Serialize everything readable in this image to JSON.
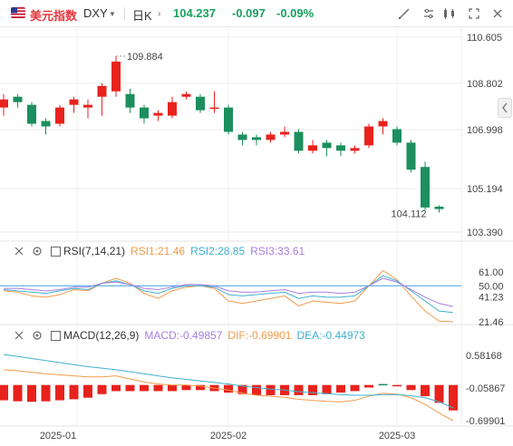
{
  "header": {
    "symbol_name": "美元指数",
    "symbol_code": "DXY",
    "period": "日K",
    "last_price": "104.237",
    "change": "-0.097",
    "change_pct": "-0.09%"
  },
  "tools": [
    "line-tool-icon",
    "indicator-settings-icon",
    "drawing-tool-icon",
    "chart-type-icon",
    "fullscreen-icon",
    "close-icon"
  ],
  "main_chart": {
    "price_ticks": [
      "110.605",
      "108.802",
      "106.998",
      "105.194",
      "103.390"
    ],
    "high_label": "109.884",
    "low_label": "104.112"
  },
  "rsi": {
    "title": "RSI(7,14,21)",
    "rsi1_label": "RSI1:21.46",
    "rsi2_label": "RSI2:28.85",
    "rsi3_label": "RSI3:33.61",
    "ticks": [
      "61.00",
      "50.00",
      "41.23",
      "21.46"
    ]
  },
  "macd": {
    "title": "MACD(12,26,9)",
    "macd_label": "MACD:-0.49857",
    "dif_label": "DIF:-0.69901",
    "dea_label": "DEA:-0.44973",
    "ticks": [
      "0.58168",
      "-0.05867",
      "-0.69901"
    ]
  },
  "x_axis": [
    "2025-01",
    "2025-02",
    "2025-03"
  ],
  "colors": {
    "up": "#e8221d",
    "down": "#1b8f5e",
    "rsi1": "#f39b4b",
    "rsi2": "#3fb1cf",
    "rsi3": "#a67fe0",
    "dif": "#f39b4b",
    "dea": "#3fb1cf",
    "accent": "#e4393c"
  },
  "chart_data": [
    {
      "type": "candlestick",
      "title": "",
      "ylim": [
        103.39,
        110.605
      ],
      "candles": [
        {
          "o": 108.0,
          "c": 108.3,
          "h": 108.5,
          "l": 107.7
        },
        {
          "o": 108.4,
          "c": 108.2,
          "h": 108.5,
          "l": 108.0
        },
        {
          "o": 108.1,
          "c": 107.4,
          "h": 108.2,
          "l": 107.3
        },
        {
          "o": 107.5,
          "c": 107.3,
          "h": 107.6,
          "l": 107.0
        },
        {
          "o": 107.4,
          "c": 108.0,
          "h": 108.1,
          "l": 107.3
        },
        {
          "o": 108.1,
          "c": 108.3,
          "h": 108.4,
          "l": 107.8
        },
        {
          "o": 108.0,
          "c": 108.1,
          "h": 108.3,
          "l": 107.6
        },
        {
          "o": 108.4,
          "c": 108.8,
          "h": 108.9,
          "l": 107.7
        },
        {
          "o": 108.6,
          "c": 109.7,
          "h": 109.9,
          "l": 108.4
        },
        {
          "o": 108.5,
          "c": 108.0,
          "h": 108.7,
          "l": 107.8
        },
        {
          "o": 108.0,
          "c": 107.6,
          "h": 108.1,
          "l": 107.4
        },
        {
          "o": 107.7,
          "c": 107.8,
          "h": 107.9,
          "l": 107.5
        },
        {
          "o": 107.7,
          "c": 108.2,
          "h": 108.4,
          "l": 107.6
        },
        {
          "o": 108.4,
          "c": 108.5,
          "h": 108.6,
          "l": 108.3
        },
        {
          "o": 108.4,
          "c": 107.9,
          "h": 108.5,
          "l": 107.8
        },
        {
          "o": 108.0,
          "c": 108.0,
          "h": 108.6,
          "l": 107.8
        },
        {
          "o": 108.0,
          "c": 107.1,
          "h": 108.1,
          "l": 107.0
        },
        {
          "o": 107.0,
          "c": 106.8,
          "h": 107.1,
          "l": 106.6
        },
        {
          "o": 106.9,
          "c": 106.8,
          "h": 107.0,
          "l": 106.6
        },
        {
          "o": 106.8,
          "c": 107.0,
          "h": 107.1,
          "l": 106.7
        },
        {
          "o": 107.0,
          "c": 107.1,
          "h": 107.3,
          "l": 106.9
        },
        {
          "o": 107.1,
          "c": 106.4,
          "h": 107.2,
          "l": 106.3
        },
        {
          "o": 106.4,
          "c": 106.6,
          "h": 106.8,
          "l": 106.3
        },
        {
          "o": 106.7,
          "c": 106.5,
          "h": 106.8,
          "l": 106.2
        },
        {
          "o": 106.6,
          "c": 106.4,
          "h": 106.7,
          "l": 106.2
        },
        {
          "o": 106.4,
          "c": 106.5,
          "h": 106.6,
          "l": 106.3
        },
        {
          "o": 106.6,
          "c": 107.3,
          "h": 107.4,
          "l": 106.5
        },
        {
          "o": 107.3,
          "c": 107.5,
          "h": 107.6,
          "l": 107.0
        },
        {
          "o": 107.2,
          "c": 106.7,
          "h": 107.3,
          "l": 106.6
        },
        {
          "o": 106.7,
          "c": 105.7,
          "h": 106.8,
          "l": 105.6
        },
        {
          "o": 105.8,
          "c": 104.3,
          "h": 106.0,
          "l": 104.2
        },
        {
          "o": 104.33,
          "c": 104.24,
          "h": 104.38,
          "l": 104.11
        }
      ]
    },
    {
      "type": "line",
      "title": "RSI(7,14,21)",
      "ylim": [
        15,
        70
      ],
      "reference_line": 50,
      "series": [
        {
          "name": "RSI1",
          "values": [
            46,
            45,
            42,
            41,
            43,
            47,
            46,
            52,
            56,
            52,
            44,
            40,
            46,
            49,
            50,
            48,
            38,
            36,
            38,
            40,
            42,
            34,
            38,
            37,
            36,
            38,
            50,
            62,
            55,
            42,
            30,
            22,
            21.46
          ]
        },
        {
          "name": "RSI2",
          "values": [
            47,
            46,
            45,
            44,
            46,
            48,
            47,
            52,
            54,
            51,
            46,
            44,
            48,
            50,
            50,
            49,
            43,
            42,
            43,
            44,
            45,
            40,
            42,
            41,
            41,
            42,
            50,
            58,
            54,
            46,
            38,
            30,
            28.85
          ]
        },
        {
          "name": "RSI3",
          "values": [
            48,
            48,
            47,
            46,
            47,
            49,
            49,
            52,
            53,
            51,
            48,
            47,
            49,
            51,
            51,
            50,
            46,
            45,
            45,
            46,
            47,
            44,
            45,
            45,
            44,
            45,
            50,
            56,
            53,
            47,
            41,
            36,
            33.61
          ]
        }
      ]
    },
    {
      "type": "bar",
      "title": "MACD(12,26,9)",
      "ylim": [
        -0.85,
        0.75
      ],
      "histogram": [
        -0.3,
        -0.32,
        -0.33,
        -0.32,
        -0.3,
        -0.28,
        -0.25,
        -0.18,
        -0.12,
        -0.12,
        -0.12,
        -0.12,
        -0.12,
        -0.1,
        -0.1,
        -0.12,
        -0.15,
        -0.18,
        -0.2,
        -0.2,
        -0.2,
        -0.2,
        -0.2,
        -0.18,
        -0.15,
        -0.12,
        -0.05,
        0.02,
        -0.02,
        -0.1,
        -0.22,
        -0.35,
        -0.49857
      ],
      "series": [
        {
          "name": "DIF",
          "values": [
            0.3,
            0.28,
            0.25,
            0.22,
            0.2,
            0.18,
            0.16,
            0.16,
            0.18,
            0.12,
            0.06,
            0.02,
            0.0,
            0.0,
            -0.02,
            -0.06,
            -0.1,
            -0.16,
            -0.2,
            -0.22,
            -0.24,
            -0.28,
            -0.3,
            -0.32,
            -0.33,
            -0.3,
            -0.22,
            -0.16,
            -0.18,
            -0.25,
            -0.38,
            -0.55,
            -0.69901
          ]
        },
        {
          "name": "DEA",
          "values": [
            0.6,
            0.56,
            0.52,
            0.48,
            0.44,
            0.4,
            0.36,
            0.33,
            0.3,
            0.26,
            0.22,
            0.18,
            0.14,
            0.11,
            0.08,
            0.05,
            0.02,
            -0.02,
            -0.05,
            -0.08,
            -0.1,
            -0.13,
            -0.15,
            -0.17,
            -0.19,
            -0.2,
            -0.2,
            -0.19,
            -0.19,
            -0.21,
            -0.25,
            -0.33,
            -0.44973
          ]
        }
      ]
    }
  ]
}
